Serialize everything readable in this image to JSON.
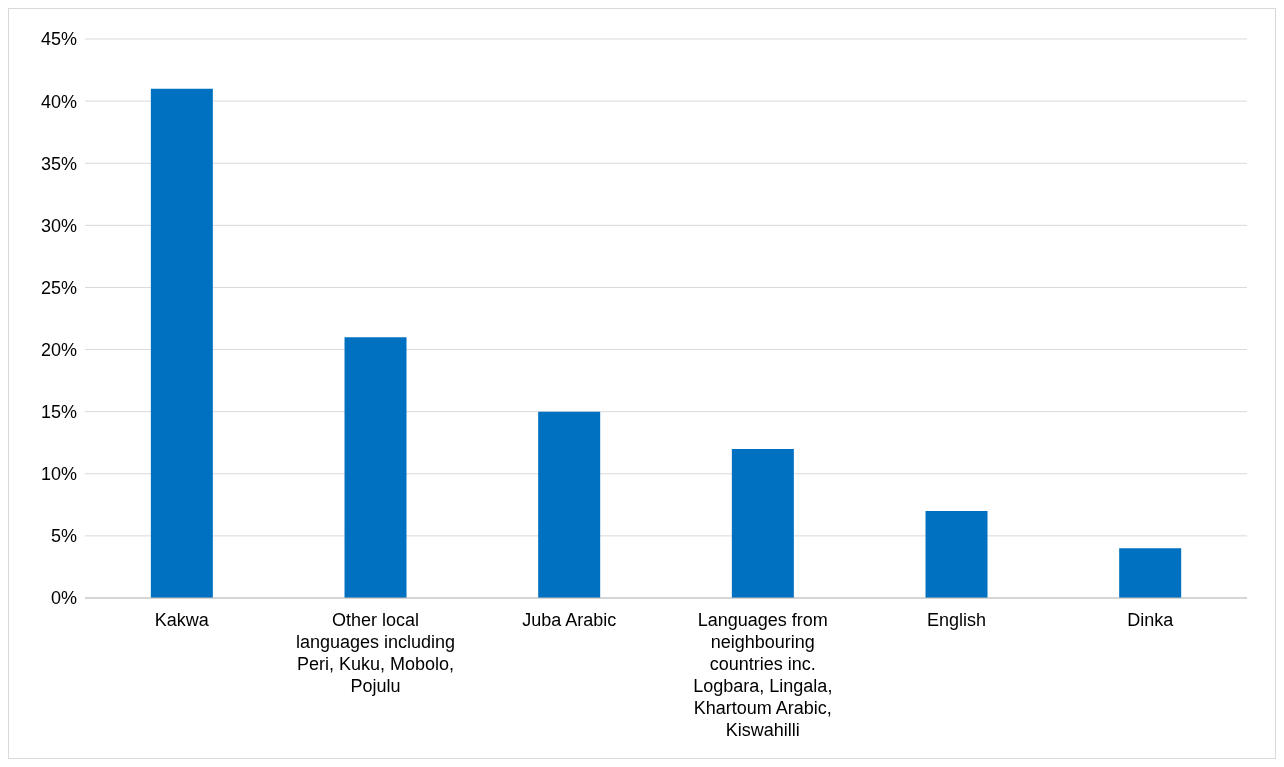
{
  "chart_data": {
    "type": "bar",
    "categories": [
      "Kakwa",
      "Other local languages including Peri, Kuku, Mobolo, Pojulu",
      "Juba Arabic",
      "Languages from neighbouring countries inc. Logbara, Lingala, Khartoum Arabic, Kiswahilli",
      "English",
      "Dinka"
    ],
    "values": [
      41,
      21,
      15,
      12,
      7,
      4
    ],
    "color": "#0070c0",
    "ylim": [
      0,
      45
    ],
    "yticks": [
      {
        "value": 0,
        "label": "0%"
      },
      {
        "value": 5,
        "label": "5%"
      },
      {
        "value": 10,
        "label": "10%"
      },
      {
        "value": 15,
        "label": "15%"
      },
      {
        "value": 20,
        "label": "20%"
      },
      {
        "value": 25,
        "label": "25%"
      },
      {
        "value": 30,
        "label": "30%"
      },
      {
        "value": 35,
        "label": "35%"
      },
      {
        "value": 40,
        "label": "40%"
      },
      {
        "value": 45,
        "label": "45%"
      }
    ],
    "grid": "y"
  }
}
